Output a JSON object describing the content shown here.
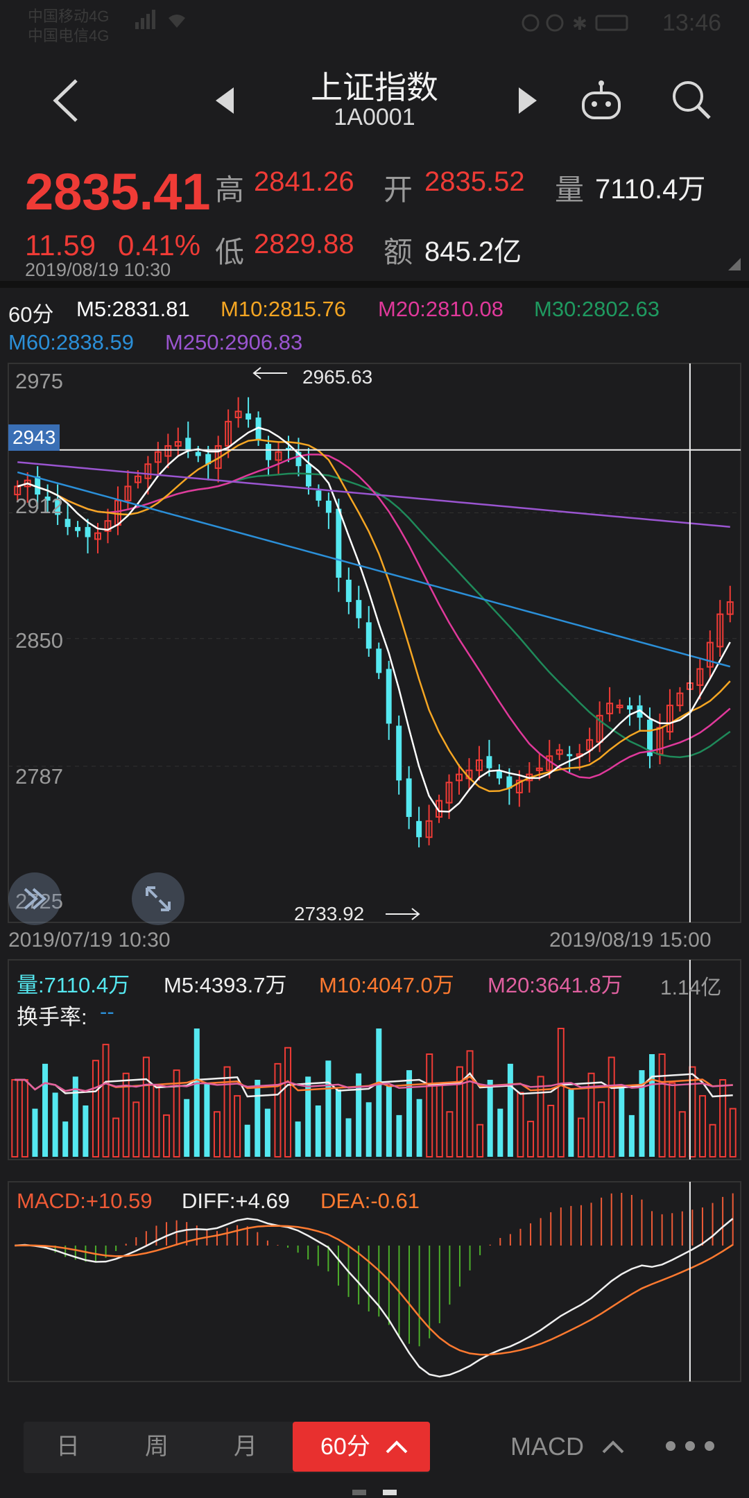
{
  "status_bar": {
    "carrier_line1": "中国移动4G",
    "carrier_line2": "中国电信4G",
    "time": "13:46"
  },
  "header": {
    "title": "上证指数",
    "code": "1A0001"
  },
  "quote": {
    "price": "2835.41",
    "change": "11.59",
    "change_pct": "0.41%",
    "timestamp": "2019/08/19 10:30",
    "high_label": "高",
    "high": "2841.26",
    "open_label": "开",
    "open": "2835.52",
    "volume_label": "量",
    "volume": "7110.4万",
    "low_label": "低",
    "low": "2829.88",
    "amount_label": "额",
    "amount": "845.2亿"
  },
  "ma_legend": {
    "period": "60分",
    "m5": "M5:2831.81",
    "m10": "M10:2815.76",
    "m20": "M20:2810.08",
    "m30": "M30:2802.63",
    "m60": "M60:2838.59",
    "m250": "M250:2906.83"
  },
  "main_chart": {
    "y_labels": [
      "2975",
      "2912",
      "2850",
      "2787",
      "2725"
    ],
    "crosshair_value": "2943",
    "high_marker": "2965.63",
    "low_marker": "2733.92",
    "start_date": "2019/07/19 10:30",
    "end_date": "2019/08/19 15:00"
  },
  "volume_legend": {
    "vol": "量:7110.4万",
    "m5": "M5:4393.7万",
    "m10": "M10:4047.0万",
    "m20": "M20:3641.8万",
    "max": "1.14亿",
    "turnover_label": "换手率:",
    "turnover_value": "--"
  },
  "macd_legend": {
    "macd": "MACD:+10.59",
    "diff": "DIFF:+4.69",
    "dea": "DEA:-0.61"
  },
  "bottom_tabs": [
    "日",
    "周",
    "月",
    "60分"
  ],
  "indicator_button": "MACD",
  "colors": {
    "up": "#ef3b36",
    "down": "#55e8f0",
    "m5": "#ffffff",
    "m10": "#f5a623",
    "m20": "#e0399b",
    "m30": "#1f8a5a",
    "m60": "#2b8fd8",
    "m250": "#9a55d0",
    "accent": "#e8302f"
  },
  "chart_data": {
    "type": "candlestick",
    "ylim": [
      2710,
      2985
    ],
    "closes": [
      2925,
      2928,
      2921,
      2918,
      2911,
      2905,
      2903,
      2900,
      2902,
      2908,
      2918,
      2925,
      2930,
      2936,
      2942,
      2945,
      2947,
      2943,
      2940,
      2936,
      2945,
      2957,
      2962,
      2958,
      2948,
      2938,
      2942,
      2943,
      2935,
      2925,
      2918,
      2912,
      2880,
      2868,
      2860,
      2845,
      2833,
      2808,
      2780,
      2762,
      2752,
      2760,
      2770,
      2779,
      2783,
      2785,
      2790,
      2786,
      2781,
      2776,
      2780,
      2783,
      2786,
      2792,
      2795,
      2792,
      2793,
      2800,
      2812,
      2818,
      2817,
      2815,
      2811,
      2792,
      2806,
      2817,
      2823,
      2828,
      2835,
      2848,
      2862,
      2868
    ],
    "volume_scale_max": "1.14亿"
  }
}
